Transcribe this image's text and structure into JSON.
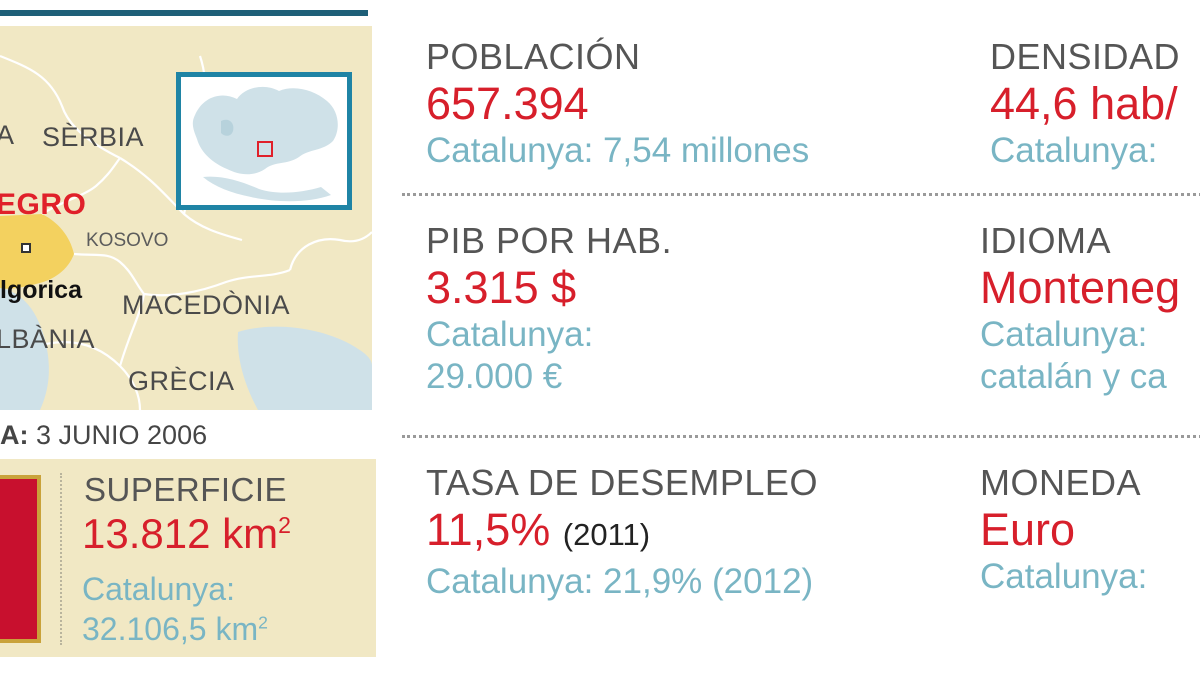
{
  "colors": {
    "accent_red": "#d71f2b",
    "compare_blue": "#79b5c4",
    "label_gray": "#555555",
    "map_land": "#f1e8c4",
    "map_sea": "#cfe1e8",
    "frame_blue": "#1f84a5"
  },
  "map": {
    "labels": {
      "left_edge": "A",
      "serbia": "SÈRBIA",
      "montenegro": "EGRO",
      "kosovo": "KOSOVO",
      "capital": "lgorica",
      "macedonia": "MACEDÒNIA",
      "albania": "LBÀNIA",
      "greece": "GRÈCIA"
    }
  },
  "date": {
    "key": "A:",
    "value": "3 JUNIO 2006"
  },
  "area": {
    "title": "SUPERFICIE",
    "value": "13.812 km",
    "value_exp": "2",
    "compare_line1": "Catalunya:",
    "compare_line2": "32.106,5 km",
    "compare_exp": "2"
  },
  "stats": {
    "population": {
      "label": "POBLACIÓN",
      "value": "657.394",
      "compare": "Catalunya: 7,54 millones"
    },
    "density": {
      "label": "DENSIDAD",
      "value": "44,6 hab/",
      "compare": "Catalunya:"
    },
    "gdp": {
      "label": "PIB POR HAB.",
      "value": "3.315 $",
      "compare_line1": "Catalunya:",
      "compare_line2": "29.000 €"
    },
    "language": {
      "label": "IDIOMA",
      "value": "Monteneg",
      "compare_line1": "Catalunya:",
      "compare_line2": "catalán y ca"
    },
    "unemployment": {
      "label": "TASA DE DESEMPLEO",
      "value": "11,5%",
      "note": "(2011)",
      "compare": "Catalunya: 21,9% (2012)"
    },
    "currency": {
      "label": "MONEDA",
      "value": "Euro",
      "compare": "Catalunya:"
    }
  }
}
